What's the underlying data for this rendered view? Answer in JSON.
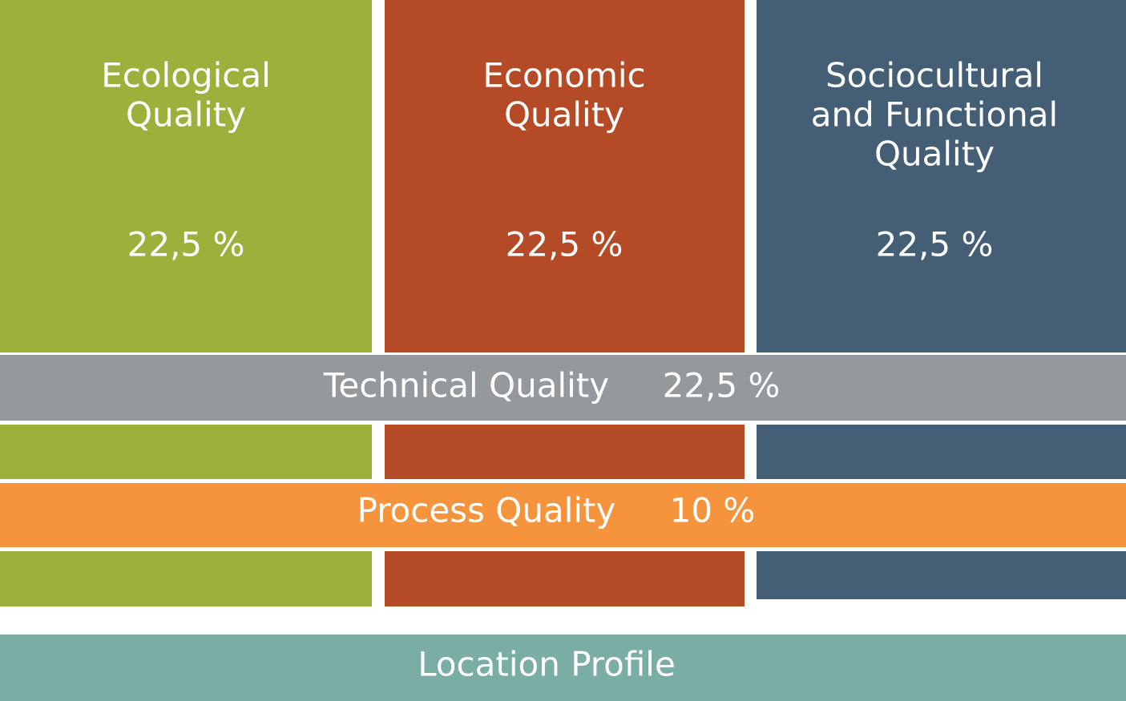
{
  "pillars": [
    {
      "title_lines": [
        "Ecological",
        "Quality"
      ],
      "share": "22,5 %"
    },
    {
      "title_lines": [
        "Economic",
        "Quality"
      ],
      "share": "22,5 %"
    },
    {
      "title_lines": [
        "Sociocultural",
        "and Functional",
        "Quality"
      ],
      "share": "22,5 %"
    }
  ],
  "bands": [
    {
      "label": "Technical Quality",
      "share": "22,5 %"
    },
    {
      "label": "Process Quality",
      "share": "10 %"
    }
  ],
  "footer": {
    "label": "Location Profile"
  }
}
